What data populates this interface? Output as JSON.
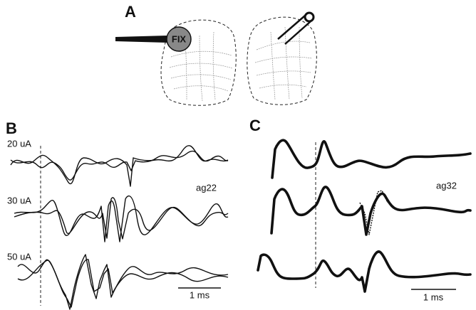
{
  "panels": [
    {
      "label": "A",
      "marker": "FIX"
    },
    {
      "label": "B",
      "stimuli": [
        "20 uA",
        "30 uA",
        "50 uA"
      ],
      "recording": "ag22",
      "scale_bar": "1 ms"
    },
    {
      "label": "C",
      "recording": "ag32",
      "scale_bar": "1 ms"
    }
  ]
}
